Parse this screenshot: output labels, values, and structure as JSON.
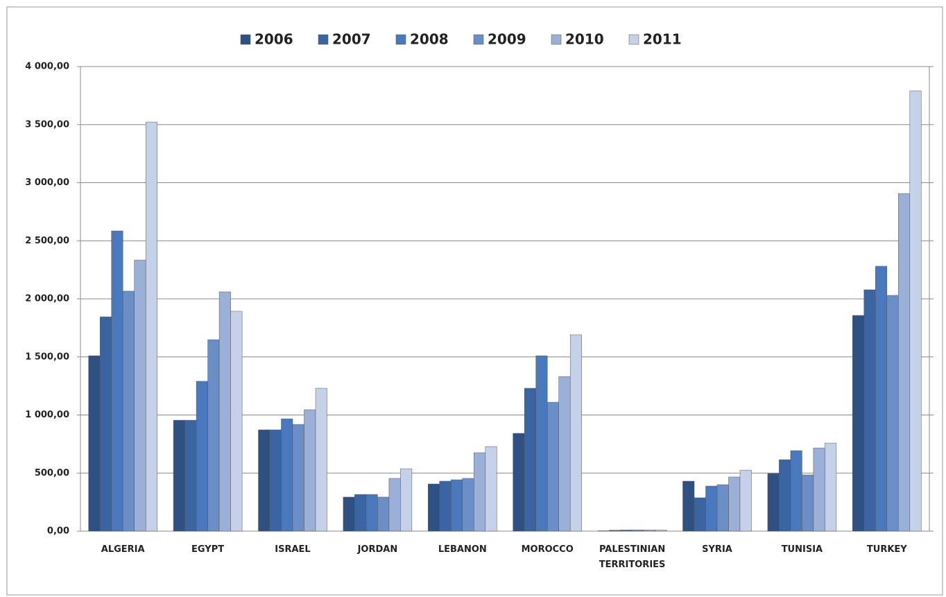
{
  "chart_data": {
    "type": "bar",
    "categories": [
      "ALGERIA",
      "EGYPT",
      "ISRAEL",
      "JORDAN",
      "LEBANON",
      "MOROCCO",
      "PALESTINIAN TERRITORIES",
      "SYRIA",
      "TUNISIA",
      "TURKEY"
    ],
    "series": [
      {
        "name": "2006",
        "color": "#2f5182",
        "values": [
          1510,
          955,
          872,
          293,
          406,
          842,
          3,
          430,
          496,
          1857
        ]
      },
      {
        "name": "2007",
        "color": "#3b64a3",
        "values": [
          1845,
          955,
          872,
          316,
          430,
          1230,
          8,
          287,
          615,
          2078
        ]
      },
      {
        "name": "2008",
        "color": "#4a78bd",
        "values": [
          2585,
          1290,
          967,
          316,
          442,
          1510,
          10,
          388,
          693,
          2281
        ]
      },
      {
        "name": "2009",
        "color": "#6b8ec6",
        "values": [
          2066,
          1648,
          919,
          293,
          454,
          1110,
          10,
          400,
          484,
          2030
        ]
      },
      {
        "name": "2010",
        "color": "#9ab0d7",
        "values": [
          2334,
          2060,
          1045,
          454,
          675,
          1331,
          10,
          466,
          716,
          2907
        ]
      },
      {
        "name": "2011",
        "color": "#c5d1e9",
        "values": [
          3522,
          1893,
          1230,
          537,
          728,
          1690,
          10,
          525,
          758,
          3791
        ]
      }
    ],
    "ylim": [
      0,
      4000
    ],
    "yticks": [
      {
        "value": 0,
        "label": "0,00"
      },
      {
        "value": 500,
        "label": "500,00"
      },
      {
        "value": 1000,
        "label": "1 000,00"
      },
      {
        "value": 1500,
        "label": "1 500,00"
      },
      {
        "value": 2000,
        "label": "2 000,00"
      },
      {
        "value": 2500,
        "label": "2 500,00"
      },
      {
        "value": 3000,
        "label": "3 000,00"
      },
      {
        "value": 3500,
        "label": "3 500,00"
      },
      {
        "value": 4000,
        "label": "4 000,00"
      }
    ],
    "grid": true,
    "legend": "top"
  }
}
